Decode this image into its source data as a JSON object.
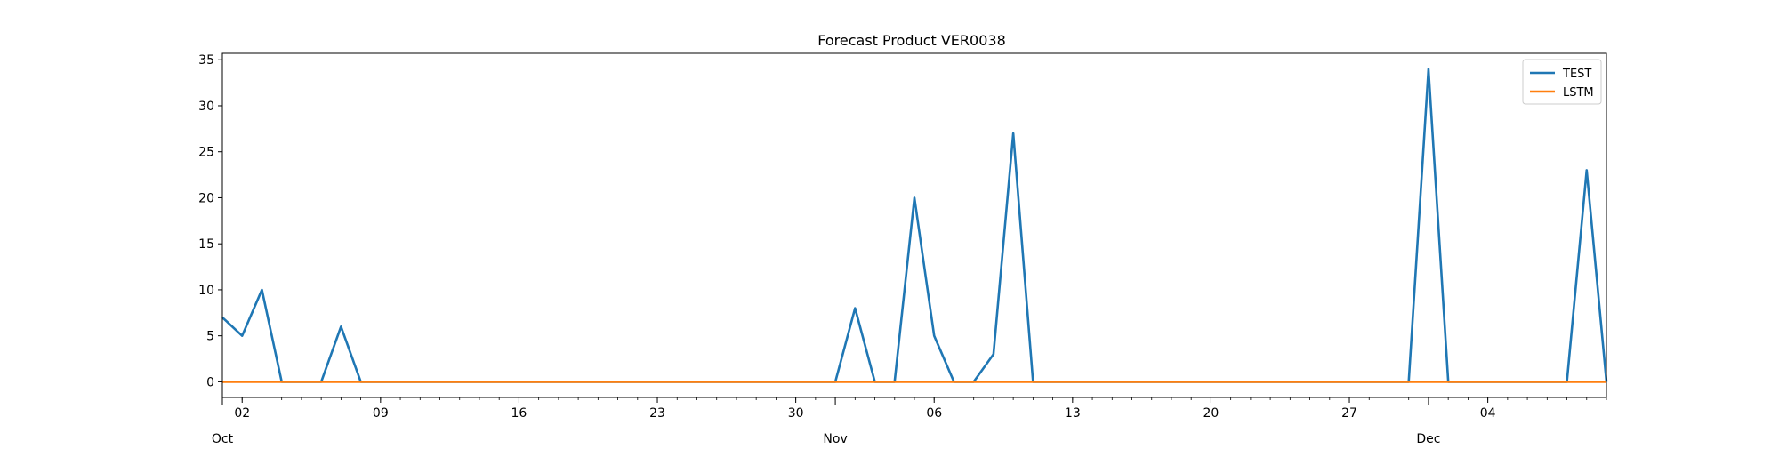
{
  "chart_data": {
    "type": "line",
    "title": "Forecast Product VER0038",
    "xlabel": "",
    "ylabel": "",
    "x_range": [
      "2020-10-01",
      "2020-12-10"
    ],
    "ylim": [
      -1.7,
      35.7
    ],
    "yticks": [
      0,
      5,
      10,
      15,
      20,
      25,
      30,
      35
    ],
    "xticks_minor": [
      {
        "date": "2020-10-02",
        "label": "02"
      },
      {
        "date": "2020-10-09",
        "label": "09"
      },
      {
        "date": "2020-10-16",
        "label": "16"
      },
      {
        "date": "2020-10-23",
        "label": "23"
      },
      {
        "date": "2020-10-30",
        "label": "30"
      },
      {
        "date": "2020-11-06",
        "label": "06"
      },
      {
        "date": "2020-11-13",
        "label": "13"
      },
      {
        "date": "2020-11-20",
        "label": "20"
      },
      {
        "date": "2020-11-27",
        "label": "27"
      },
      {
        "date": "2020-12-04",
        "label": "04"
      }
    ],
    "xticks_month": [
      {
        "date": "2020-10-01",
        "label": "Oct"
      },
      {
        "date": "2020-11-01",
        "label": "Nov"
      },
      {
        "date": "2020-12-01",
        "label": "Dec"
      }
    ],
    "grid": false,
    "legend_position": "top-right",
    "series": [
      {
        "name": "TEST",
        "color": "#1f77b4",
        "points": [
          [
            "2020-10-01",
            7
          ],
          [
            "2020-10-02",
            5
          ],
          [
            "2020-10-03",
            10
          ],
          [
            "2020-10-04",
            0
          ],
          [
            "2020-10-05",
            0
          ],
          [
            "2020-10-06",
            0
          ],
          [
            "2020-10-07",
            6
          ],
          [
            "2020-10-08",
            0
          ],
          [
            "2020-11-01",
            0
          ],
          [
            "2020-11-02",
            8
          ],
          [
            "2020-11-03",
            0
          ],
          [
            "2020-11-04",
            0
          ],
          [
            "2020-11-05",
            20
          ],
          [
            "2020-11-06",
            5
          ],
          [
            "2020-11-07",
            0
          ],
          [
            "2020-11-08",
            0
          ],
          [
            "2020-11-09",
            3
          ],
          [
            "2020-11-10",
            27
          ],
          [
            "2020-11-11",
            0
          ],
          [
            "2020-11-12",
            0
          ],
          [
            "2020-11-30",
            0
          ],
          [
            "2020-12-01",
            34
          ],
          [
            "2020-12-02",
            0
          ],
          [
            "2020-12-03",
            0
          ],
          [
            "2020-12-08",
            0
          ],
          [
            "2020-12-09",
            23
          ],
          [
            "2020-12-10",
            0
          ]
        ]
      },
      {
        "name": "LSTM",
        "color": "#ff7f0e",
        "points": [
          [
            "2020-10-01",
            0
          ],
          [
            "2020-12-10",
            0
          ]
        ]
      }
    ]
  }
}
